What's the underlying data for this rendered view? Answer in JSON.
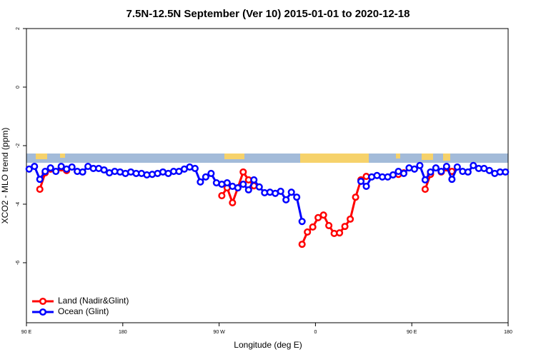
{
  "chart_data": {
    "type": "line",
    "title": "7.5N-12.5N September (Ver 10)   2015-01-01 to 2020-12-18",
    "x_label": "Longitude (deg E)",
    "y_label": "XCO2 - MLO trend (ppm)",
    "xlim": [
      90,
      540
    ],
    "ylim": [
      -8.05,
      2
    ],
    "xticks": [
      {
        "value": 90,
        "label": "90 E"
      },
      180,
      {
        "value": 270,
        "label": "90 W"
      },
      {
        "value": 360,
        "label": "0"
      },
      {
        "value": 450,
        "label": "90 E"
      },
      {
        "value": 540,
        "label": "180"
      }
    ],
    "yticks": [
      -6,
      -4,
      -2,
      0,
      2
    ],
    "legend": "bottom-left",
    "x": [
      92.5,
      97.5,
      102.5,
      107.5,
      112.5,
      117.5,
      122.5,
      127.5,
      132.5,
      137.5,
      142.5,
      147.5,
      152.5,
      157.5,
      162.5,
      167.5,
      172.5,
      177.5,
      182.5,
      187.5,
      192.5,
      197.5,
      202.5,
      207.5,
      212.5,
      217.5,
      222.5,
      227.5,
      232.5,
      237.5,
      242.5,
      247.5,
      252.5,
      257.5,
      262.5,
      267.5,
      272.5,
      277.5,
      282.5,
      287.5,
      292.5,
      297.5,
      302.5,
      307.5,
      312.5,
      317.5,
      322.5,
      327.5,
      332.5,
      337.5,
      342.5,
      347.5,
      352.5,
      357.5,
      362.5,
      367.5,
      372.5,
      377.5,
      382.5,
      387.5,
      392.5,
      397.5,
      402.5,
      407.5,
      412.5,
      417.5,
      422.5,
      427.5,
      432.5,
      437.5,
      442.5,
      447.5,
      452.5,
      457.5,
      462.5,
      467.5,
      472.5,
      477.5,
      482.5,
      487.5,
      492.5,
      497.5,
      502.5,
      507.5,
      512.5,
      517.5,
      522.5,
      527.5,
      532.5,
      537.5
    ],
    "series": [
      {
        "name": "Land (Nadir&Glint)",
        "color": "#ff0000",
        "values": [
          null,
          null,
          -3.49,
          -2.93,
          -2.8,
          null,
          -2.76,
          -2.85,
          null,
          null,
          null,
          null,
          null,
          null,
          null,
          null,
          null,
          null,
          null,
          null,
          null,
          null,
          null,
          null,
          null,
          null,
          null,
          null,
          null,
          null,
          null,
          null,
          null,
          null,
          null,
          null,
          -3.71,
          -3.44,
          -3.95,
          -3.44,
          -2.9,
          -3.17,
          -3.37,
          null,
          null,
          null,
          null,
          null,
          null,
          null,
          null,
          -5.37,
          -4.95,
          -4.78,
          -4.46,
          -4.37,
          -4.73,
          -5.0,
          -4.98,
          -4.76,
          -4.51,
          -3.76,
          -3.17,
          -3.05,
          null,
          null,
          null,
          null,
          null,
          -2.98,
          -2.93,
          null,
          null,
          null,
          -3.49,
          -2.98,
          null,
          -2.9,
          -2.76,
          -2.88,
          null,
          null,
          null,
          null,
          null,
          null,
          null,
          null,
          null,
          null
        ]
      },
      {
        "name": "Ocean (Glint)",
        "color": "#0000ff",
        "values": [
          -2.8,
          -2.71,
          -3.15,
          -2.88,
          -2.76,
          -2.88,
          -2.71,
          -2.8,
          -2.73,
          -2.88,
          -2.9,
          -2.71,
          -2.78,
          -2.78,
          -2.83,
          -2.93,
          -2.88,
          -2.9,
          -2.95,
          -2.9,
          -2.95,
          -2.95,
          -3.0,
          -2.98,
          -2.95,
          -2.9,
          -2.95,
          -2.88,
          -2.88,
          -2.8,
          -2.73,
          -2.78,
          -3.24,
          -3.07,
          -2.95,
          -3.27,
          -3.32,
          -3.27,
          -3.39,
          -3.44,
          -3.32,
          -3.51,
          -3.17,
          -3.41,
          -3.61,
          -3.59,
          -3.63,
          -3.56,
          -3.85,
          -3.59,
          -3.76,
          -4.59,
          null,
          null,
          null,
          null,
          null,
          null,
          null,
          null,
          null,
          null,
          -3.22,
          -3.39,
          -3.07,
          -3.02,
          -3.07,
          -3.07,
          -3.0,
          -2.88,
          -2.95,
          -2.76,
          -2.8,
          -2.68,
          -3.17,
          -2.9,
          -2.76,
          -2.88,
          -2.71,
          -3.15,
          -2.73,
          -2.88,
          -2.9,
          -2.68,
          -2.78,
          -2.78,
          -2.85,
          -2.95,
          -2.9,
          -2.9
        ]
      }
    ]
  }
}
